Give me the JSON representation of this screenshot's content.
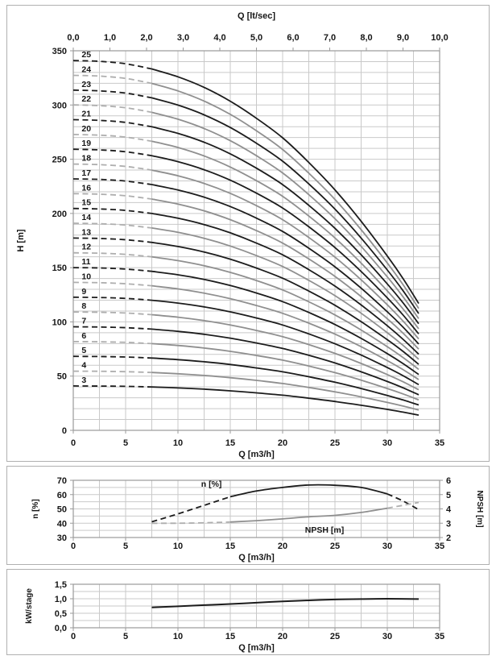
{
  "colors": {
    "black_curve": "#1c1c1c",
    "gray_curve_solid": "#8f8f8f",
    "gray_curve_dash": "#aeaeae",
    "grid": "#c9c9c9",
    "axis": "#9a9a9a",
    "text": "#161616"
  },
  "chart_data": [
    {
      "name": "main-head-chart",
      "type": "line",
      "title": "Q [lt/sec]",
      "xlabel": "Q [m3/h]",
      "ylabel": "H [m]",
      "top_axis": {
        "title": "Q [lt/sec]",
        "min": 0,
        "max": 10,
        "step": 1,
        "labels": [
          "0,0",
          "1,0",
          "2,0",
          "3,0",
          "4,0",
          "5,0",
          "6,0",
          "7,0",
          "8,0",
          "9,0",
          "10,0"
        ]
      },
      "x_axis": {
        "title": "Q [m3/h]",
        "min": 0,
        "max": 35,
        "label_step": 5,
        "grid_step": 2.5,
        "labels": [
          "0",
          "5",
          "10",
          "15",
          "20",
          "25",
          "30",
          "35"
        ]
      },
      "y_axis": {
        "title": "H [m]",
        "min": 0,
        "max": 350,
        "label_step": 50,
        "grid_step": 10,
        "labels": [
          "0",
          "50",
          "100",
          "150",
          "200",
          "250",
          "300",
          "350"
        ]
      },
      "stages": [
        3,
        4,
        5,
        6,
        7,
        8,
        9,
        10,
        11,
        12,
        13,
        14,
        15,
        16,
        17,
        18,
        19,
        20,
        21,
        22,
        23,
        24,
        25
      ],
      "q_points": [
        0,
        2.5,
        5,
        7.5,
        10,
        12.5,
        15,
        17.5,
        20,
        22.5,
        25,
        27.5,
        30,
        31.5,
        33
      ],
      "head_per_stage": [
        13.64,
        13.61,
        13.52,
        13.33,
        13.04,
        12.65,
        12.14,
        11.51,
        10.79,
        9.88,
        8.87,
        7.71,
        6.43,
        5.6,
        4.68
      ],
      "dashed_below_q": 7.5,
      "stage_label_q": 0.8,
      "stage_color_rule": "odd-black-even-gray"
    },
    {
      "name": "efficiency-npsh-chart",
      "type": "line",
      "xlabel": "Q [m3/h]",
      "left_axis": {
        "title": "n [%]",
        "min": 30,
        "max": 70,
        "label_step": 10,
        "grid_step": 5,
        "labels": [
          "30",
          "40",
          "50",
          "60",
          "70"
        ]
      },
      "right_axis": {
        "title": "NPSH [m]",
        "min": 2,
        "max": 6,
        "label_step": 1,
        "labels": [
          "2",
          "3",
          "4",
          "5",
          "6"
        ]
      },
      "x_axis": {
        "title": "Q [m3/h]",
        "min": 0,
        "max": 35,
        "label_step": 5,
        "grid_step": 2.5,
        "labels": [
          "0",
          "5",
          "10",
          "15",
          "20",
          "25",
          "30",
          "35"
        ]
      },
      "series": [
        {
          "name": "efficiency",
          "label": "n [%]",
          "axis": "left",
          "color": "black",
          "dash_below_q": 15,
          "dash_above_q": 30,
          "points": [
            [
              7.5,
              41
            ],
            [
              10,
              46.5
            ],
            [
              12.5,
              52.5
            ],
            [
              15,
              58.5
            ],
            [
              17.5,
              62.5
            ],
            [
              20,
              65
            ],
            [
              22.5,
              66.7
            ],
            [
              25,
              66.5
            ],
            [
              27.5,
              65
            ],
            [
              30,
              60.5
            ],
            [
              31.5,
              55.5
            ],
            [
              33,
              49.5
            ]
          ]
        },
        {
          "name": "npsh",
          "label": "NPSH [m]",
          "axis": "right",
          "color": "gray",
          "dash_below_q": 15,
          "dash_above_q": 30,
          "points": [
            [
              7.5,
              3.0
            ],
            [
              10,
              3.0
            ],
            [
              12.5,
              3.03
            ],
            [
              15,
              3.08
            ],
            [
              17.5,
              3.18
            ],
            [
              20,
              3.3
            ],
            [
              22.5,
              3.45
            ],
            [
              25,
              3.55
            ],
            [
              27.5,
              3.75
            ],
            [
              30,
              4.05
            ],
            [
              31.5,
              4.25
            ],
            [
              33,
              4.45
            ]
          ]
        }
      ],
      "annotations": [
        {
          "text": "n [%]",
          "q": 13.2,
          "value": 67.8,
          "axis": "left"
        },
        {
          "text": "NPSH [m]",
          "q": 24,
          "value": 35.5,
          "axis": "left"
        }
      ]
    },
    {
      "name": "power-chart",
      "type": "line",
      "xlabel": "Q [m3/h]",
      "y_axis": {
        "title": "kW/stage",
        "min": 0,
        "max": 1.5,
        "label_step": 0.5,
        "grid_step": 0.25,
        "labels": [
          "0,0",
          "0,5",
          "1,0",
          "1,5"
        ]
      },
      "x_axis": {
        "title": "Q [m3/h]",
        "min": 0,
        "max": 35,
        "label_step": 5,
        "grid_step": 2.5,
        "labels": [
          "0",
          "5",
          "10",
          "15",
          "20",
          "25",
          "30",
          "35"
        ]
      },
      "series": [
        {
          "name": "kw-per-stage",
          "color": "black",
          "points": [
            [
              7.5,
              0.7
            ],
            [
              10,
              0.74
            ],
            [
              12.5,
              0.78
            ],
            [
              15,
              0.82
            ],
            [
              17.5,
              0.865
            ],
            [
              20,
              0.91
            ],
            [
              22.5,
              0.945
            ],
            [
              25,
              0.975
            ],
            [
              27.5,
              0.99
            ],
            [
              30,
              1.0
            ],
            [
              33,
              0.99
            ]
          ]
        }
      ]
    }
  ]
}
